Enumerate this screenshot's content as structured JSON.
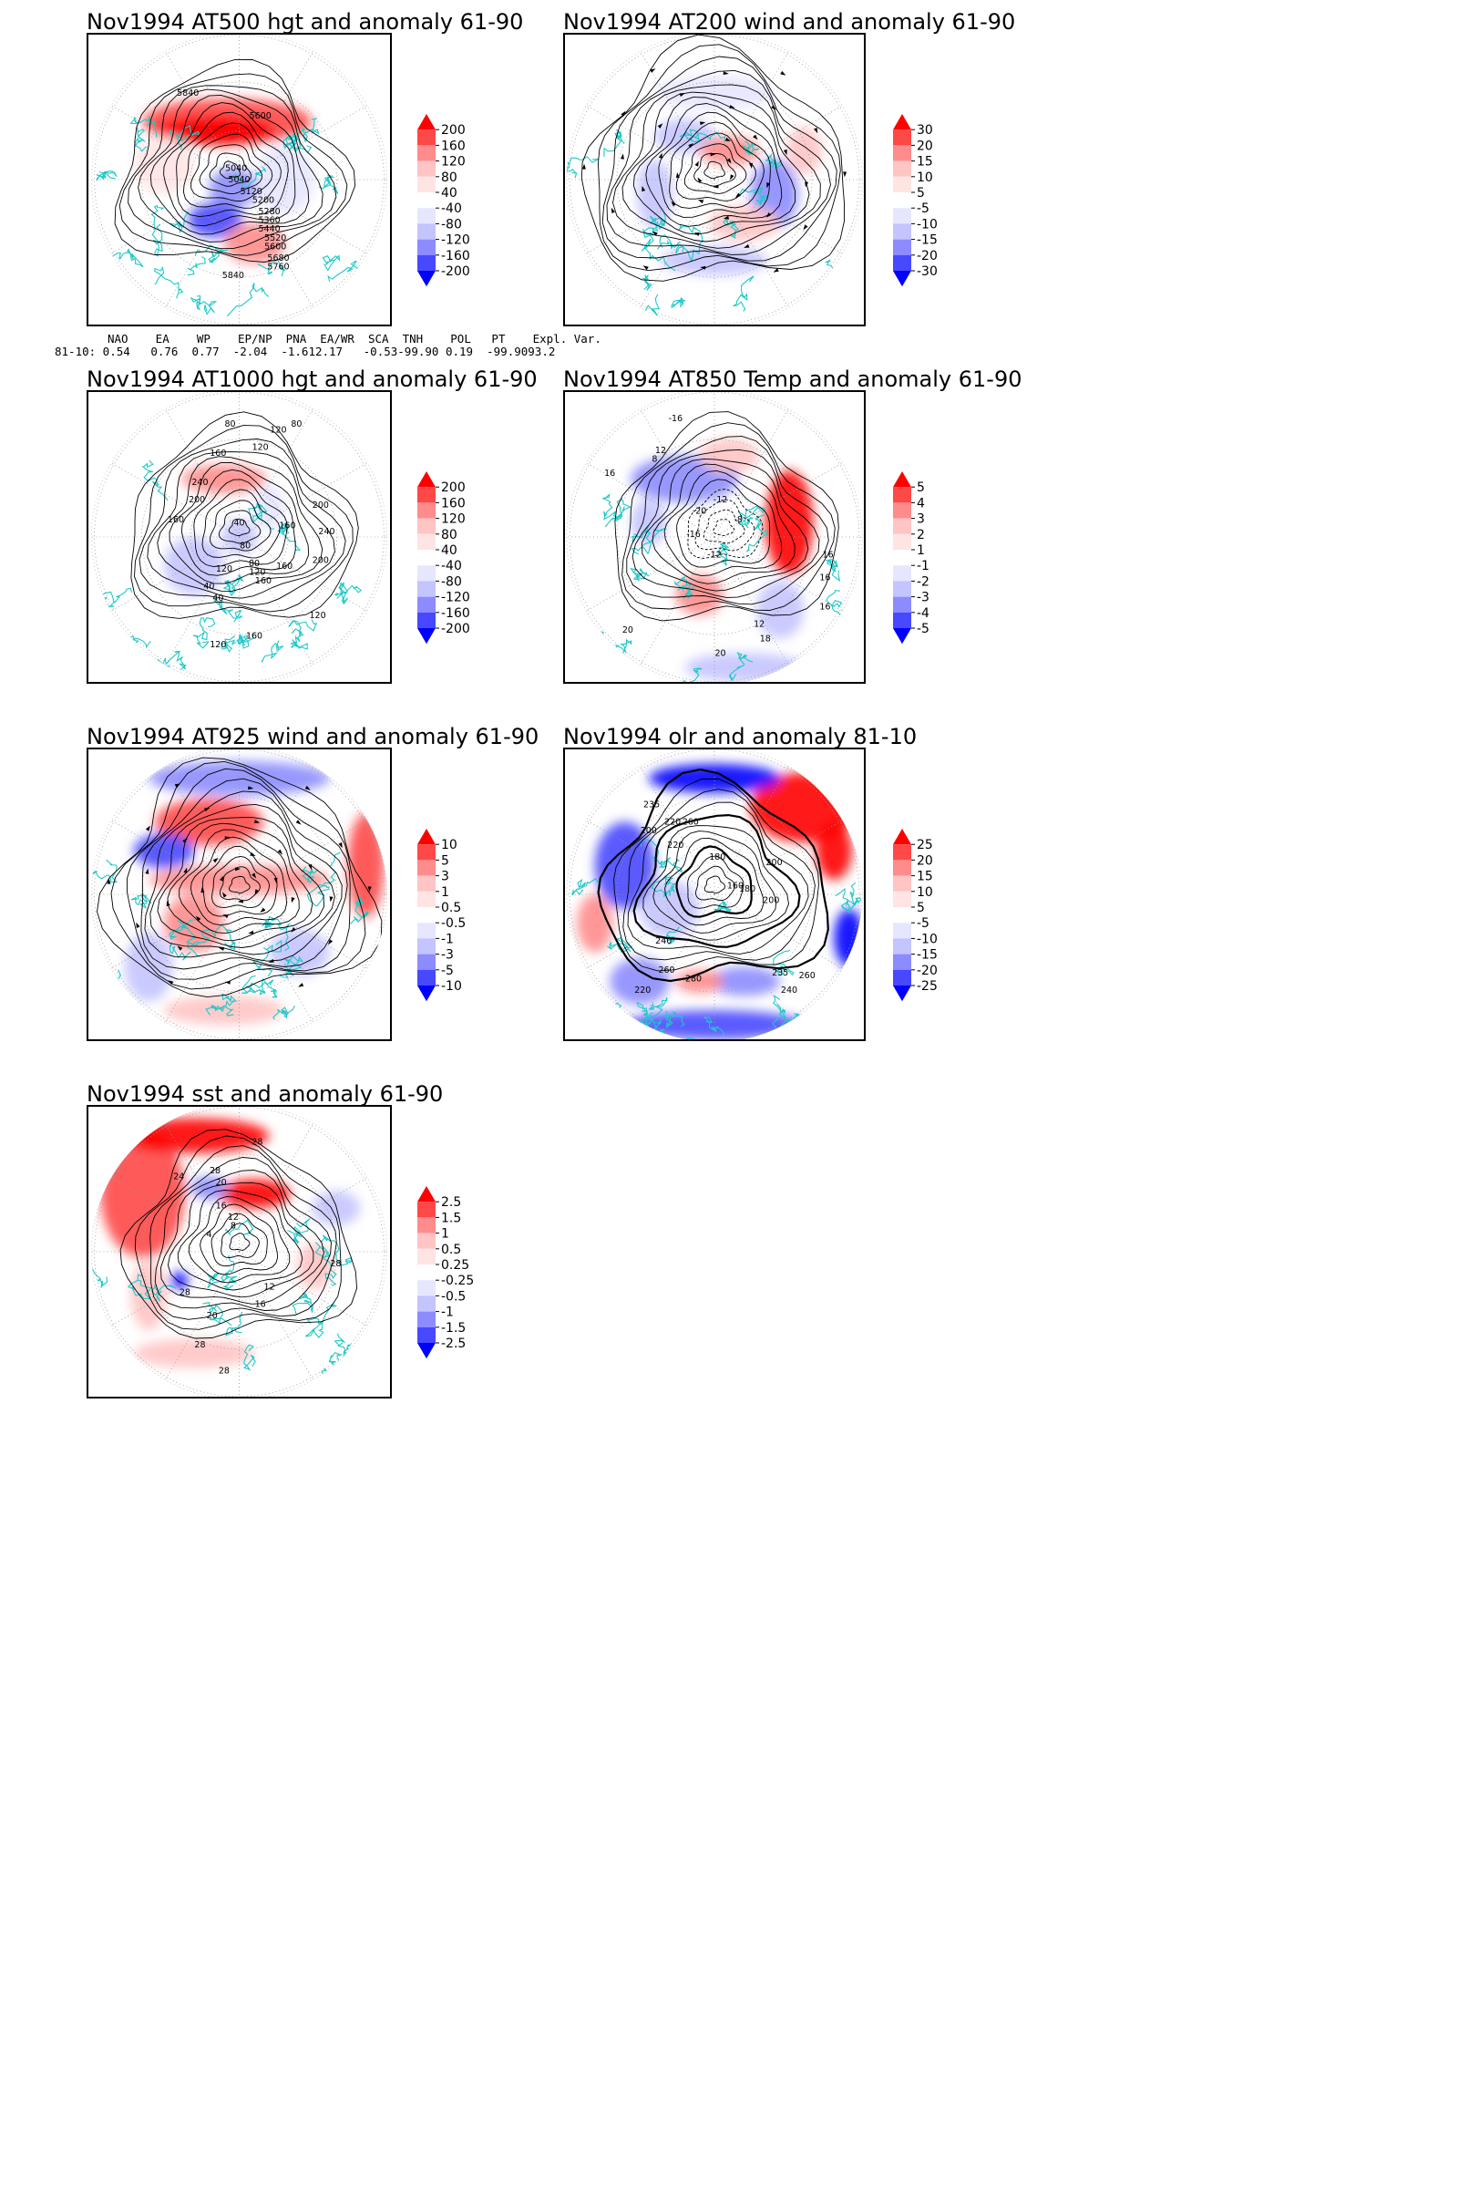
{
  "panels": [
    {
      "id": "z500",
      "title": "Nov1994 AT500 hgt and anomaly 61-90",
      "colorbar": [
        "200",
        "160",
        "120",
        "80",
        "40",
        "-40",
        "-80",
        "-120",
        "-160",
        "-200"
      ],
      "contour_labels": [
        "5840",
        "5600",
        "5040",
        "5040",
        "5120",
        "5200",
        "5280",
        "5360",
        "5440",
        "5520",
        "5600",
        "5680",
        "5760",
        "5840"
      ]
    },
    {
      "id": "u200",
      "title": "Nov1994 AT200 wind and anomaly 61-90",
      "colorbar": [
        "30",
        "20",
        "15",
        "10",
        "5",
        "-5",
        "-10",
        "-15",
        "-20",
        "-30"
      ],
      "contour_labels": []
    },
    {
      "id": "z1000",
      "title": "Nov1994 AT1000 hgt and anomaly 61-90",
      "colorbar": [
        "200",
        "160",
        "120",
        "80",
        "40",
        "-40",
        "-80",
        "-120",
        "-160",
        "-200"
      ],
      "contour_labels": [
        "80",
        "120",
        "80",
        "160",
        "120",
        "240",
        "200",
        "160",
        "200",
        "160",
        "240",
        "200",
        "160",
        "120",
        "120",
        "160",
        "120",
        "40",
        "40",
        "80",
        "120",
        "80",
        "160",
        "40"
      ]
    },
    {
      "id": "t850",
      "title": "Nov1994 AT850 Temp and anomaly 61-90",
      "colorbar": [
        "5",
        "4",
        "3",
        "2",
        "1",
        "-1",
        "-2",
        "-3",
        "-4",
        "-5"
      ],
      "contour_labels": [
        "-16",
        "12",
        "16",
        "8",
        "-12",
        "-20",
        "-8",
        "-16",
        "-12",
        "16",
        "16",
        "16",
        "12",
        "18",
        "20",
        "20"
      ]
    },
    {
      "id": "u925",
      "title": "Nov1994 AT925 wind and anomaly 61-90",
      "colorbar": [
        "10",
        "5",
        "3",
        "1",
        "0.5",
        "-0.5",
        "-1",
        "-3",
        "-5",
        "-10"
      ],
      "contour_labels": []
    },
    {
      "id": "olr",
      "title": "Nov1994 olr and anomaly 81-10",
      "colorbar": [
        "25",
        "20",
        "15",
        "10",
        "5",
        "-5",
        "-10",
        "-15",
        "-20",
        "-25"
      ],
      "contour_labels": [
        "235",
        "220",
        "200",
        "260",
        "220",
        "180",
        "200",
        "160",
        "180",
        "200",
        "240",
        "260",
        "280",
        "220",
        "235",
        "260",
        "240"
      ]
    },
    {
      "id": "sst",
      "title": "Nov1994 sst and anomaly 61-90",
      "colorbar": [
        "2.5",
        "1.5",
        "1",
        "0.5",
        "0.25",
        "-0.25",
        "-0.5",
        "-1",
        "-1.5",
        "-2.5"
      ],
      "contour_labels": [
        "28",
        "28",
        "24",
        "20",
        "16",
        "12",
        "8",
        "4",
        "28",
        "12",
        "16",
        "20",
        "28",
        "28",
        "28"
      ]
    }
  ],
  "teleconnections": {
    "header": [
      "NAO",
      "EA",
      "WP",
      "EP/NP",
      "PNA",
      "EA/WR",
      "SCA",
      "TNH",
      "POL",
      "PT",
      "Expl. Var."
    ],
    "row_label": "81-10:",
    "values": [
      "0.54",
      "0.76",
      "0.77",
      "-2.04",
      "-1.61",
      "2.17",
      "-0.53",
      "-99.90",
      "0.19",
      "-99.90",
      "93.2"
    ]
  },
  "colors": {
    "coastline": "#20c8c8",
    "contour": "#000000",
    "positive": [
      "#ff0000",
      "#ff4848",
      "#ff8c8c",
      "#ffc4c4",
      "#ffe4e4"
    ],
    "negative": [
      "#e6e6ff",
      "#c4c4ff",
      "#8c8cff",
      "#4848ff",
      "#0000ff"
    ]
  }
}
